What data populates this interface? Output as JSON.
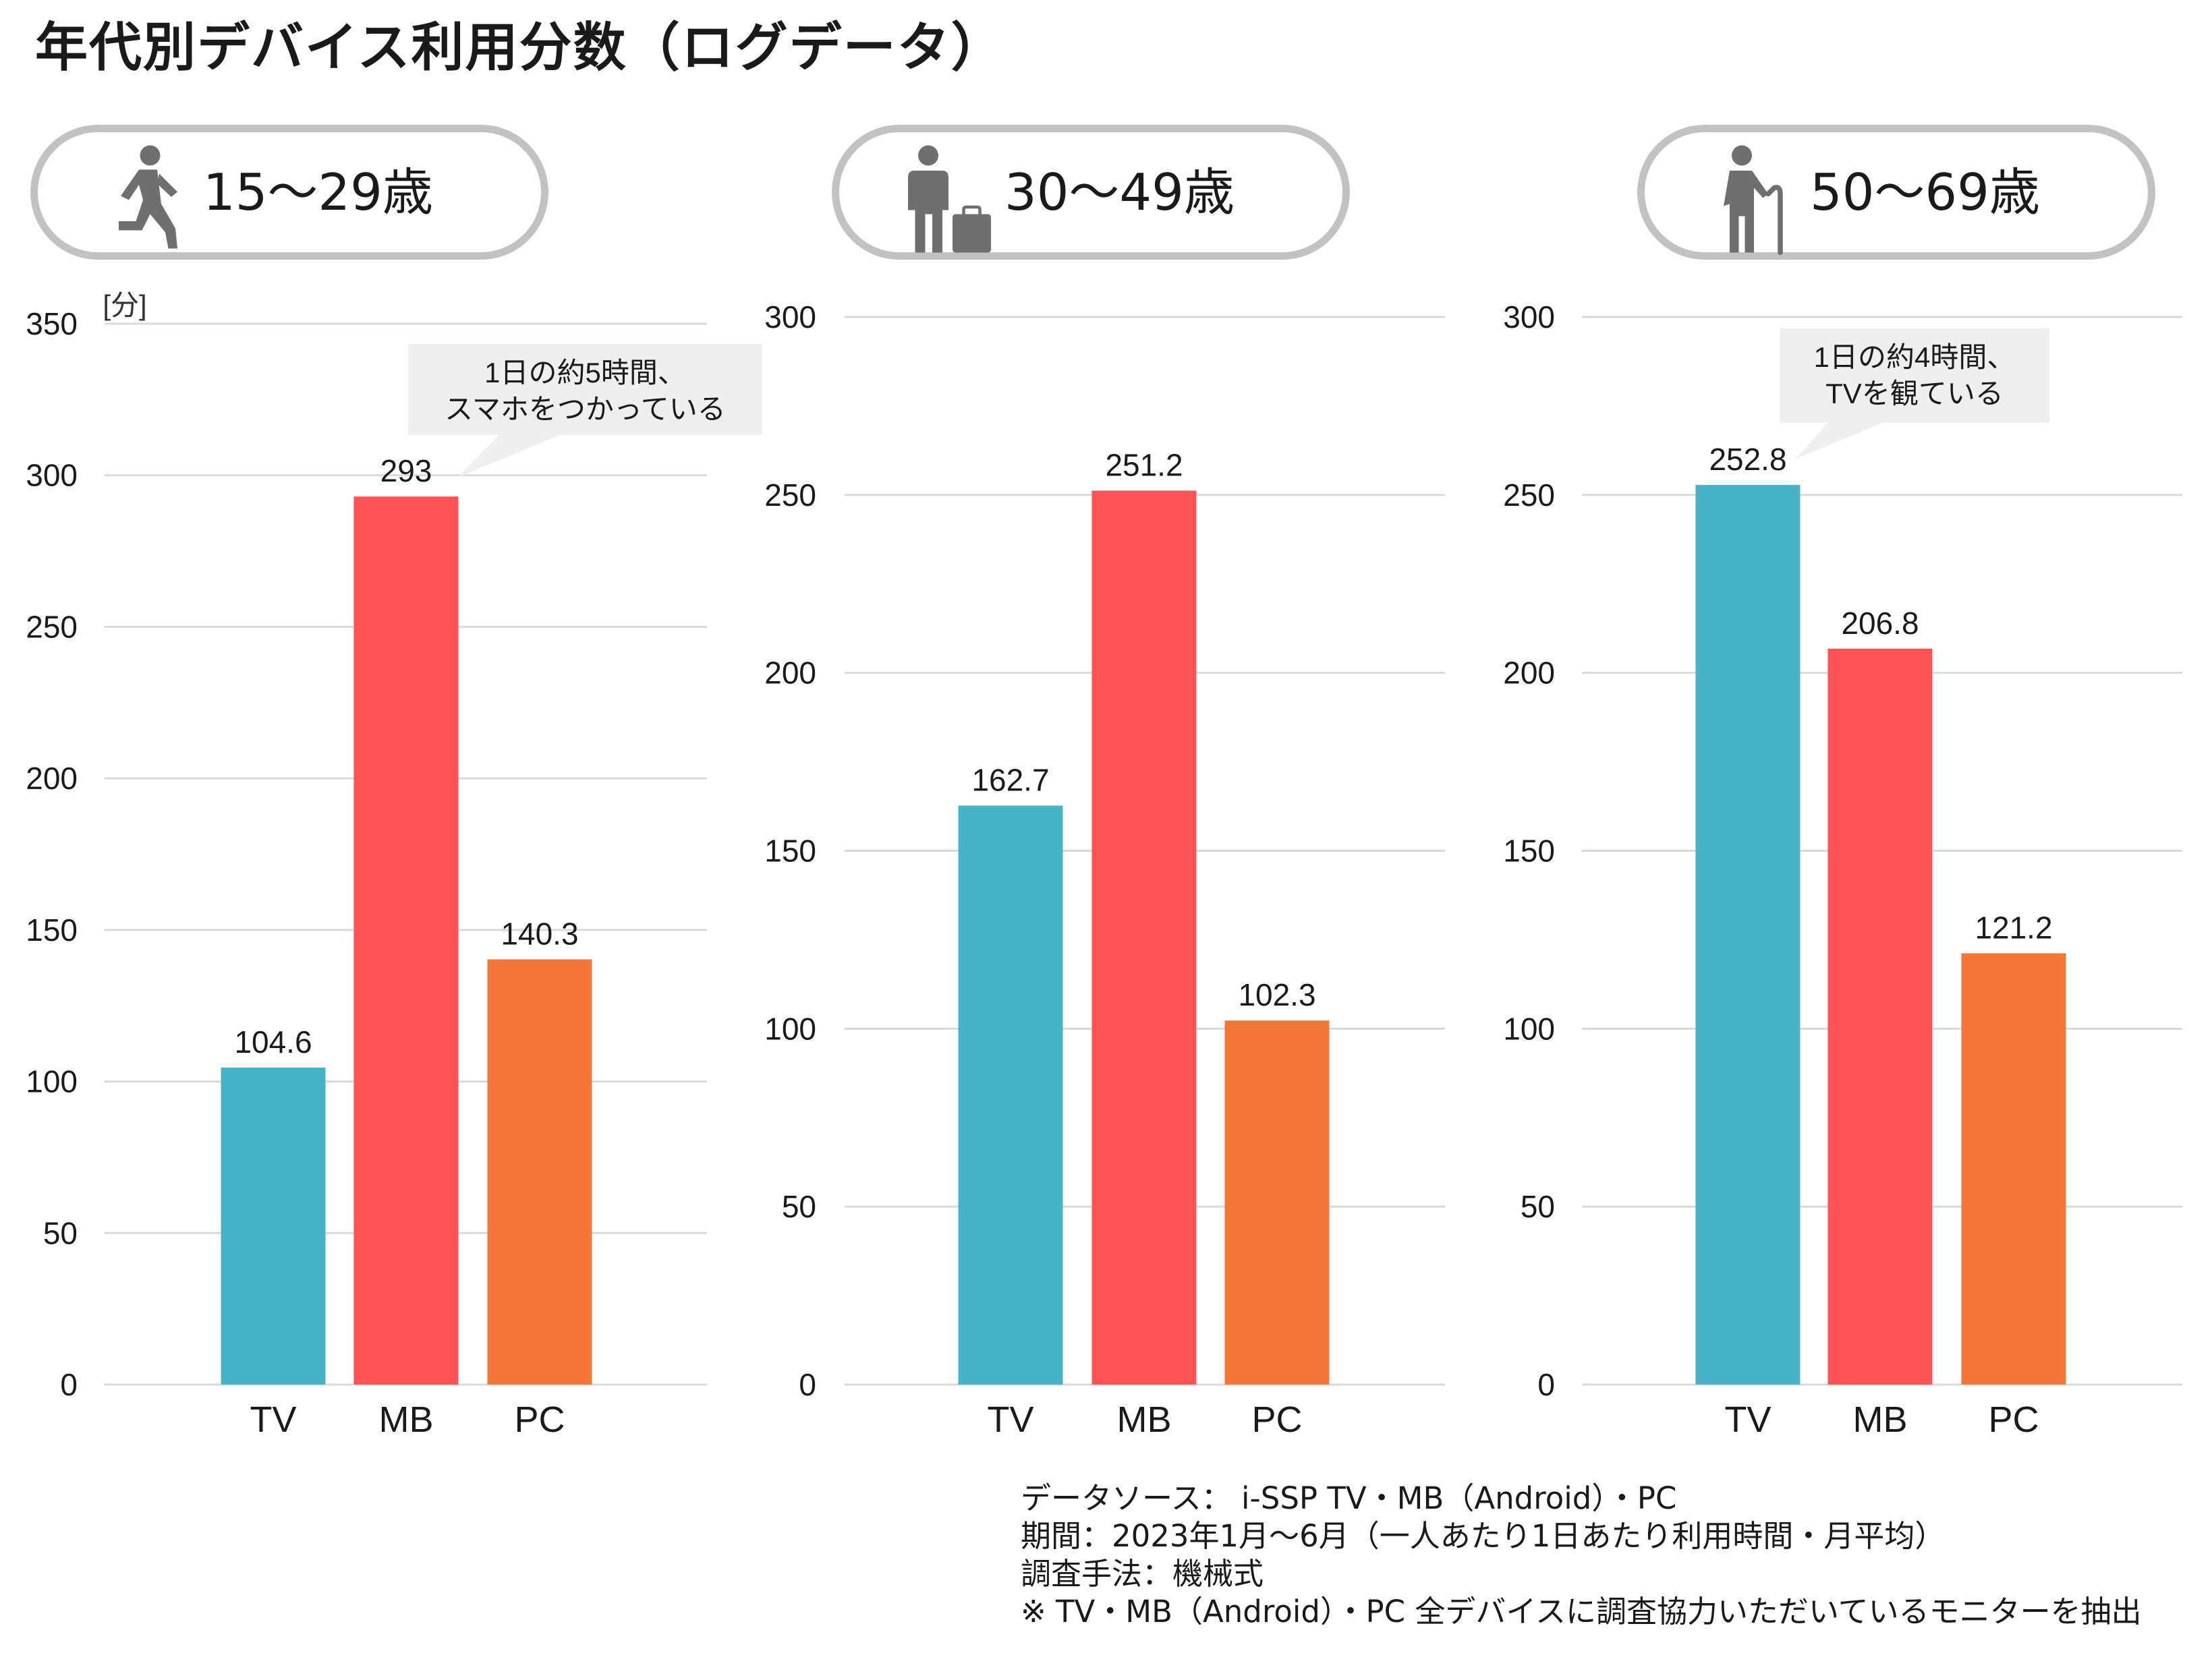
{
  "title": "年代別デバイス利用分数（ログデータ）",
  "groups": [
    {
      "label": "15〜29歳",
      "icon": "running-person-icon"
    },
    {
      "label": "30〜49歳",
      "icon": "businessperson-briefcase-icon"
    },
    {
      "label": "50〜69歳",
      "icon": "elderly-person-cane-icon"
    }
  ],
  "colors": {
    "TV": "#47B3C6",
    "MB": "#FF5255",
    "PC": "#F57738",
    "grid": "#d9d9d9",
    "pill_border": "#c2c2c2",
    "callout": "#efefef"
  },
  "chart_data": [
    {
      "type": "bar",
      "title": "15〜29歳",
      "categories": [
        "TV",
        "MB",
        "PC"
      ],
      "values": [
        104.6,
        293,
        140.3
      ],
      "value_labels": [
        "104.6",
        "293",
        "140.3"
      ],
      "ylim": [
        0,
        350
      ],
      "yticks": [
        0,
        50,
        100,
        150,
        200,
        250,
        300,
        350
      ],
      "yunit": "[分]",
      "annotation": {
        "lines": [
          "1日の約5時間、",
          "スマホをつかっている"
        ],
        "target": "MB"
      }
    },
    {
      "type": "bar",
      "title": "30〜49歳",
      "categories": [
        "TV",
        "MB",
        "PC"
      ],
      "values": [
        162.7,
        251.2,
        102.3
      ],
      "value_labels": [
        "162.7",
        "251.2",
        "102.3"
      ],
      "ylim": [
        0,
        300
      ],
      "yticks": [
        0,
        50,
        100,
        150,
        200,
        250,
        300
      ]
    },
    {
      "type": "bar",
      "title": "50〜69歳",
      "categories": [
        "TV",
        "MB",
        "PC"
      ],
      "values": [
        252.8,
        206.8,
        121.2
      ],
      "value_labels": [
        "252.8",
        "206.8",
        "121.2"
      ],
      "ylim": [
        0,
        300
      ],
      "yticks": [
        0,
        50,
        100,
        150,
        200,
        250,
        300
      ],
      "annotation": {
        "lines": [
          "1日の約4時間、",
          "TVを観ている"
        ],
        "target": "TV"
      }
    }
  ],
  "footnotes": [
    "データソース： i-SSP TV・MB（Android）・PC",
    "期間：2023年1月〜6月（一人あたり1日あたり利用時間・月平均）",
    "調査手法：機械式",
    "※ TV・MB（Android）・PC 全デバイスに調査協力いただいているモニターを抽出"
  ]
}
